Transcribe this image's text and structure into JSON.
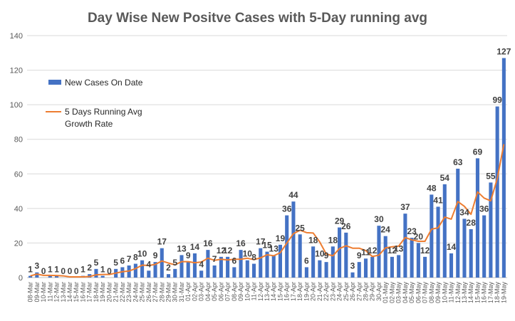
{
  "chart_data": {
    "type": "bar",
    "title": "Day Wise New Positve Cases with 5-Day running avg",
    "xlabel": "",
    "ylabel": "",
    "ylim": [
      0,
      140
    ],
    "yticks": [
      0,
      20,
      40,
      60,
      80,
      100,
      120,
      140
    ],
    "grid": true,
    "legend_position": "top-left",
    "categories": [
      "08-Mar",
      "09-Mar",
      "10-Mar",
      "11-Mar",
      "12-Mar",
      "13-Mar",
      "14-Mar",
      "15-Mar",
      "16-Mar",
      "17-Mar",
      "18-Mar",
      "19-Mar",
      "20-Mar",
      "21-Mar",
      "22-Mar",
      "23-Mar",
      "24-Mar",
      "25-Mar",
      "26-Mar",
      "27-Mar",
      "28-Mar",
      "29-Mar",
      "30-Mar",
      "31-Mar",
      "01-Apr",
      "02-Apr",
      "03-Apr",
      "04-Apr",
      "05-Apr",
      "06-Apr",
      "07-Apr",
      "08-Apr",
      "09-Apr",
      "10-Apr",
      "11-Apr",
      "12-Apr",
      "13-Apr",
      "14-Apr",
      "15-Apr",
      "16-Apr",
      "17-Apr",
      "18-Apr",
      "19-Apr",
      "20-Apr",
      "21-Apr",
      "22-Apr",
      "23-Apr",
      "24-Apr",
      "25-Apr",
      "26-Apr",
      "27-Apr",
      "28-Apr",
      "29-Apr",
      "30-Apr",
      "01-May",
      "02-May",
      "03-May",
      "04-May",
      "05-May",
      "06-May",
      "07-May",
      "08-May",
      "09-May",
      "10-May",
      "11-May",
      "12-May",
      "13-May",
      "14-May",
      "15-May",
      "16-May",
      "17-May",
      "18-May",
      "19-May"
    ],
    "series": [
      {
        "name": "New Cases On Date",
        "type": "bar",
        "color": "#4472C4",
        "values": [
          1,
          3,
          0,
          1,
          1,
          0,
          0,
          0,
          1,
          2,
          5,
          1,
          0,
          5,
          6,
          7,
          8,
          10,
          4,
          9,
          17,
          2,
          5,
          13,
          9,
          14,
          4,
          16,
          7,
          12,
          12,
          6,
          16,
          10,
          8,
          17,
          15,
          13,
          19,
          36,
          44,
          25,
          6,
          18,
          10,
          9,
          18,
          29,
          26,
          3,
          9,
          11,
          12,
          30,
          24,
          12,
          13,
          37,
          23,
          20,
          12,
          48,
          41,
          54,
          14,
          63,
          34,
          28,
          69,
          36,
          55,
          99,
          127
        ],
        "data_labels": [
          "1",
          "3",
          "0",
          "1",
          "1",
          "0",
          "0",
          "0",
          "1",
          "2",
          "5",
          "1",
          "0",
          "5",
          "6",
          "7",
          "8",
          "10",
          "4",
          "9",
          "17",
          "2",
          "5",
          "13",
          "9",
          "14",
          "4",
          "16",
          "7",
          "12",
          "12",
          "6",
          "16",
          "10",
          "8",
          "17",
          "15",
          "13",
          "19",
          "36",
          "44",
          "25",
          "6",
          "18",
          "10",
          "9",
          "18",
          "29",
          "26",
          "3",
          "9",
          "11",
          "12",
          "30",
          "24",
          "12",
          "13",
          "37",
          "23",
          "20",
          "12",
          "48",
          "41",
          "54",
          "14",
          "63",
          "34",
          "28",
          "69",
          "36",
          "55",
          "99",
          "127"
        ]
      },
      {
        "name": "5 Days Running Avg Growth Rate",
        "type": "line",
        "color": "#ED7D31",
        "values": [
          1,
          2,
          1.3,
          1.3,
          1.2,
          1,
          0.4,
          0.4,
          0.4,
          0.6,
          1.6,
          1.8,
          1.8,
          2.6,
          3.4,
          3.8,
          5.2,
          7.2,
          7,
          7.6,
          9.6,
          8.4,
          7.4,
          9.2,
          9.2,
          8.6,
          9,
          11.2,
          10,
          10.6,
          10.2,
          10.6,
          10.6,
          11.2,
          10.4,
          11.4,
          13.2,
          12.6,
          14.4,
          20,
          25.4,
          27.4,
          26,
          25.8,
          20.6,
          13.6,
          12.6,
          16.8,
          18.4,
          17,
          17,
          15.6,
          12.2,
          13,
          17.2,
          17.8,
          18.2,
          23.2,
          21.8,
          21,
          21,
          28,
          28.8,
          35,
          33.8,
          44,
          41.2,
          36.6,
          49.6,
          46,
          44.4,
          57.4,
          77.2
        ]
      }
    ]
  }
}
